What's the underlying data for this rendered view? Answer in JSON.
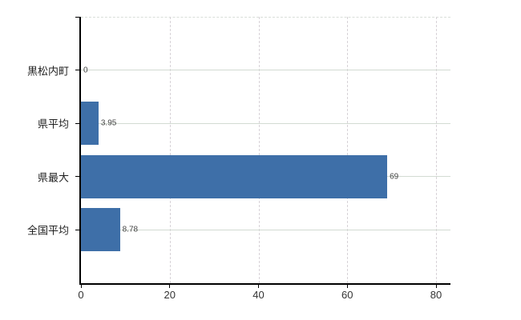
{
  "chart_data": {
    "type": "bar",
    "orientation": "horizontal",
    "title": "",
    "xlabel": "",
    "ylabel": "",
    "categories": [
      "黒松内町",
      "県平均",
      "県最大",
      "全国平均"
    ],
    "values": [
      0,
      3.95,
      69,
      8.78
    ],
    "value_labels": [
      "0",
      "3.95",
      "69",
      "8.78"
    ],
    "x_ticks": [
      0,
      20,
      40,
      60,
      80
    ],
    "xlim": [
      0,
      83.2
    ],
    "grid": true,
    "grid_style": "horizontal solid lines at category centers, vertical dashed lines at x ticks, dashed top boundary",
    "legend": false,
    "colors": {
      "bar": "#3e6fa8",
      "grid_horizontal": "#d2dbd2",
      "grid_vertical": "#d7d2d7",
      "top_boundary": "#d9ded9",
      "axis": "#000000",
      "category_text": "#1f1f1f",
      "tick_text": "#333333",
      "value_text": "#444444",
      "background": "#ffffff"
    }
  }
}
